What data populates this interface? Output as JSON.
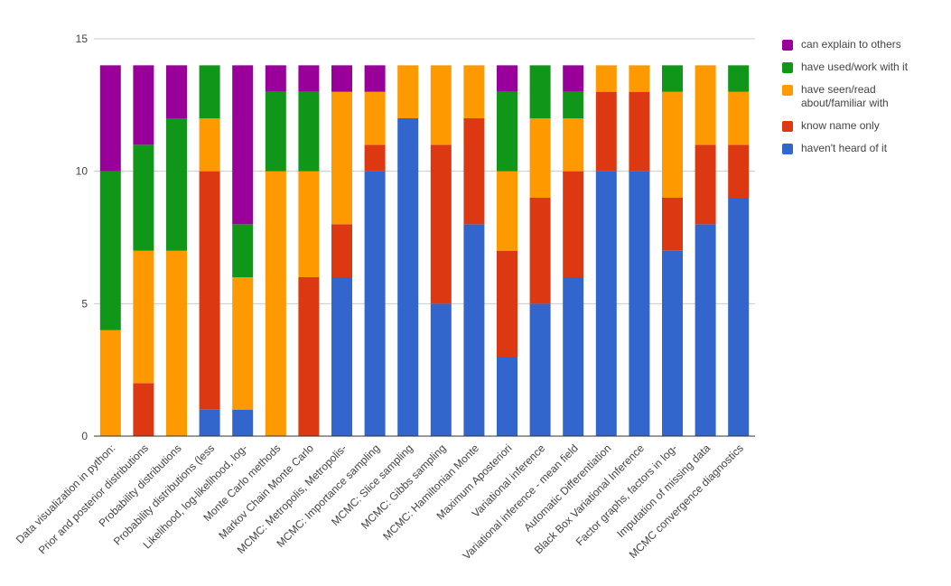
{
  "chart_data": {
    "type": "bar",
    "stacked": true,
    "title": "",
    "xlabel": "",
    "ylabel": "",
    "ylim": [
      0,
      15
    ],
    "yticks": [
      0,
      5,
      10,
      15
    ],
    "grid": true,
    "legend_position": "right",
    "categories": [
      "Data visualization in python:",
      "Prior and posterior distributions",
      "Probability distributions",
      "Probability distributions (less",
      "Likelihood, log-likelihood, log-",
      "Monte Carlo methods",
      "Markov Chain Monte Carlo",
      "MCMC: Metropolis, Metropolis-",
      "MCMC: Importance sampling",
      "MCMC: Slice sampling",
      "MCMC: Gibbs sampling",
      "MCMC: Hamiltonian Monte",
      "Maximum Aposteriori",
      "Variational inference",
      "Variational inference - mean field",
      "Automatic Differentiation",
      "Black Box Variational Inference",
      "Factor graphs, factors in log-",
      "Imputation of missing data",
      "MCMC convergence diagnostics"
    ],
    "series": [
      {
        "name": "haven't heard of it",
        "color": "#3366cc",
        "values": [
          0,
          0,
          0,
          1,
          1,
          0,
          0,
          6,
          10,
          12,
          5,
          8,
          3,
          5,
          6,
          10,
          10,
          7,
          8,
          9
        ]
      },
      {
        "name": "know name only",
        "color": "#dc3912",
        "values": [
          0,
          2,
          0,
          9,
          0,
          0,
          6,
          2,
          1,
          0,
          6,
          4,
          4,
          4,
          4,
          3,
          3,
          2,
          3,
          2
        ]
      },
      {
        "name": "have seen/read about/familiar with",
        "color": "#ff9900",
        "values": [
          4,
          5,
          7,
          2,
          5,
          10,
          4,
          5,
          2,
          2,
          3,
          2,
          3,
          3,
          2,
          1,
          1,
          4,
          3,
          2
        ]
      },
      {
        "name": "have used/work with it",
        "color": "#109618",
        "values": [
          6,
          4,
          5,
          2,
          2,
          3,
          3,
          0,
          0,
          0,
          0,
          0,
          3,
          2,
          1,
          0,
          0,
          1,
          0,
          1
        ]
      },
      {
        "name": "can explain to others",
        "color": "#990099",
        "values": [
          4,
          3,
          2,
          0,
          6,
          1,
          1,
          1,
          1,
          0,
          0,
          0,
          1,
          0,
          1,
          0,
          0,
          0,
          0,
          0
        ]
      }
    ],
    "legend_order": [
      "can explain to others",
      "have used/work with it",
      "have seen/read about/familiar with",
      "know name only",
      "haven't heard of it"
    ]
  }
}
